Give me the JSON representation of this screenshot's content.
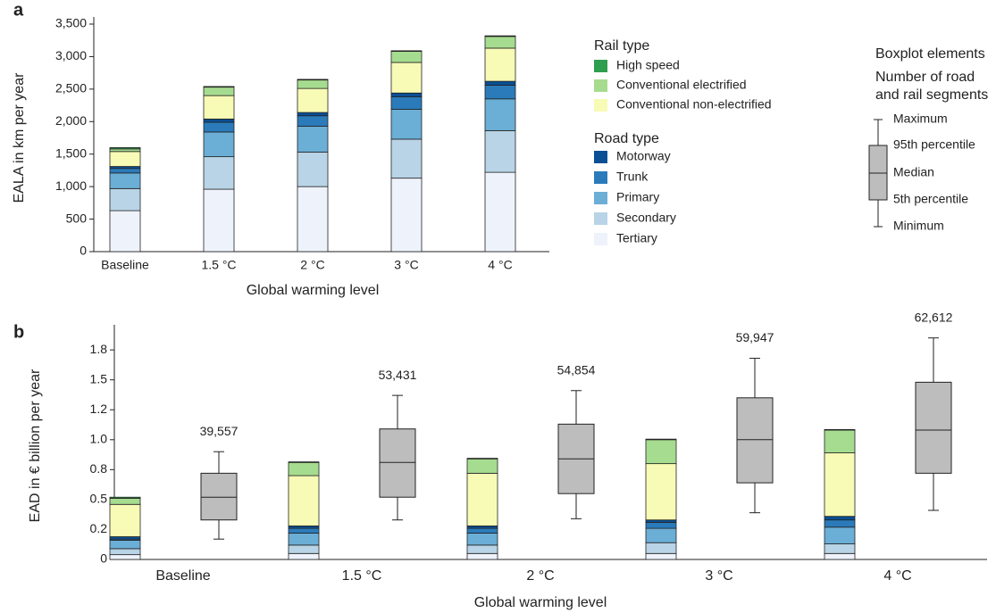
{
  "chart_data": [
    {
      "type": "stacked_bar",
      "panel": "a",
      "ylabel": "EALA in km per year",
      "xlabel": "Global warming level",
      "categories": [
        "Baseline",
        "1.5 °C",
        "2 °C",
        "3 °C",
        "4 °C"
      ],
      "ylim": [
        0,
        3500
      ],
      "yticks": [
        0,
        500,
        {
          "value": 1000,
          "label": "1,000"
        },
        {
          "value": 1500,
          "label": "1,500"
        },
        {
          "value": 2000,
          "label": "2,000"
        },
        {
          "value": 2500,
          "label": "2,500"
        },
        {
          "value": 3000,
          "label": "3,000"
        },
        {
          "value": 3500,
          "label": "3,500"
        }
      ],
      "legend_titles": [
        "Rail type",
        "Road type"
      ],
      "series": [
        {
          "name": "Tertiary",
          "color": "#eef2fb",
          "values": [
            630,
            960,
            1000,
            1130,
            1220
          ]
        },
        {
          "name": "Secondary",
          "color": "#b8d4e6",
          "values": [
            340,
            500,
            530,
            600,
            640
          ]
        },
        {
          "name": "Primary",
          "color": "#6baed6",
          "values": [
            240,
            380,
            400,
            460,
            490
          ]
        },
        {
          "name": "Trunk",
          "color": "#2b7bba",
          "values": [
            70,
            150,
            160,
            190,
            210
          ]
        },
        {
          "name": "Motorway",
          "color": "#0b4f94",
          "values": [
            30,
            50,
            50,
            60,
            60
          ]
        },
        {
          "name": "Conventional non-electrified",
          "color": "#f7fbb5",
          "values": [
            230,
            360,
            370,
            470,
            510
          ]
        },
        {
          "name": "Conventional electrified",
          "color": "#a6dc8f",
          "values": [
            40,
            130,
            130,
            170,
            180
          ]
        },
        {
          "name": "High speed",
          "color": "#2e9e4f",
          "values": [
            20,
            10,
            10,
            10,
            10
          ]
        }
      ]
    },
    {
      "type": "stacked_bar_box",
      "panel": "b",
      "ylabel": "EAD in € billion per year",
      "xlabel": "Global warming level",
      "categories": [
        "Baseline",
        "1.5 °C",
        "2 °C",
        "3 °C",
        "4 °C"
      ],
      "ylim": [
        0,
        1.9
      ],
      "yticks": [
        0,
        {
          "value": 0.25,
          "label": "0.2"
        },
        0.5,
        {
          "value": 0.75,
          "label": "0.8"
        },
        {
          "value": 1.0,
          "label": "1.0"
        },
        {
          "value": 1.25,
          "label": "1.2"
        },
        1.5,
        {
          "value": 1.75,
          "label": "1.8"
        }
      ],
      "series": [
        {
          "color": "#eef2fb",
          "values": [
            0.04,
            0.05,
            0.05,
            0.05,
            0.05
          ]
        },
        {
          "color": "#b8d4e6",
          "values": [
            0.05,
            0.07,
            0.07,
            0.09,
            0.08
          ]
        },
        {
          "color": "#6baed6",
          "values": [
            0.07,
            0.1,
            0.1,
            0.12,
            0.14
          ]
        },
        {
          "color": "#2b7bba",
          "values": [
            0.01,
            0.04,
            0.04,
            0.05,
            0.06
          ]
        },
        {
          "color": "#0b4f94",
          "values": [
            0.02,
            0.02,
            0.02,
            0.02,
            0.03
          ]
        },
        {
          "color": "#f7fbb5",
          "values": [
            0.27,
            0.42,
            0.44,
            0.47,
            0.53
          ]
        },
        {
          "color": "#a6dc8f",
          "values": [
            0.05,
            0.11,
            0.12,
            0.2,
            0.19
          ]
        },
        {
          "color": "#2e9e4f",
          "values": [
            0.01,
            0.005,
            0.005,
            0.005,
            0.005
          ]
        }
      ],
      "boxplot": {
        "color": "#bdbdbd",
        "min": [
          0.17,
          0.33,
          0.34,
          0.39,
          0.41
        ],
        "p5": [
          0.33,
          0.52,
          0.55,
          0.64,
          0.72
        ],
        "median": [
          0.52,
          0.81,
          0.84,
          1.0,
          1.08
        ],
        "p95": [
          0.72,
          1.09,
          1.13,
          1.35,
          1.48
        ],
        "max": [
          0.9,
          1.37,
          1.41,
          1.68,
          1.85
        ],
        "annotations": [
          "39,557",
          "53,431",
          "54,854",
          "59,947",
          "62,612"
        ]
      }
    }
  ],
  "boxplot_legend": {
    "title": "Boxplot elements",
    "subtitle": [
      "Number of road",
      "and rail segments"
    ],
    "labels": [
      "Maximum",
      "95th percentile",
      "Median",
      "5th percentile",
      "Minimum"
    ]
  }
}
